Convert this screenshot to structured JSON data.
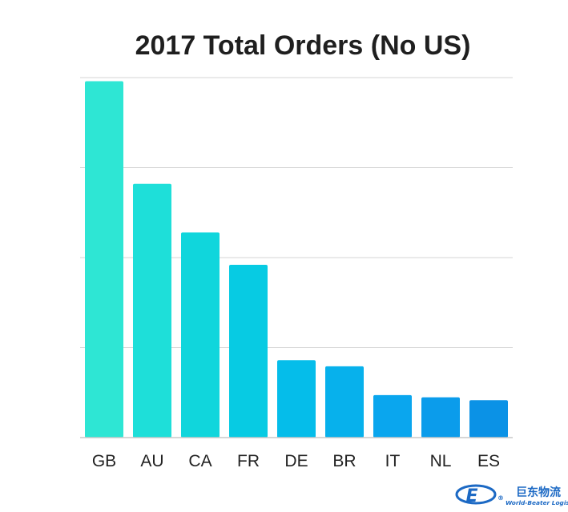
{
  "chart_data": {
    "type": "bar",
    "title": "2017 Total Orders (No US)",
    "categories": [
      "GB",
      "AU",
      "CA",
      "FR",
      "DE",
      "BR",
      "IT",
      "NL",
      "ES"
    ],
    "values": [
      99,
      70.5,
      57,
      48,
      21.5,
      19.8,
      11.8,
      11.2,
      10.4
    ],
    "ylim": [
      0,
      100
    ],
    "grid": true,
    "xlabel": "",
    "ylabel": "",
    "colors": [
      "#2ee6d4",
      "#1edfd9",
      "#10d6dc",
      "#07cbe3",
      "#05bdea",
      "#07b1ec",
      "#0aa6ee",
      "#0b9ceb",
      "#0b92e6"
    ]
  },
  "logo": {
    "cn_text": "巨东物流",
    "en_text": "World-Beater Logistics",
    "mark_text": "E",
    "registered": "®",
    "color": "#1c69c4"
  }
}
